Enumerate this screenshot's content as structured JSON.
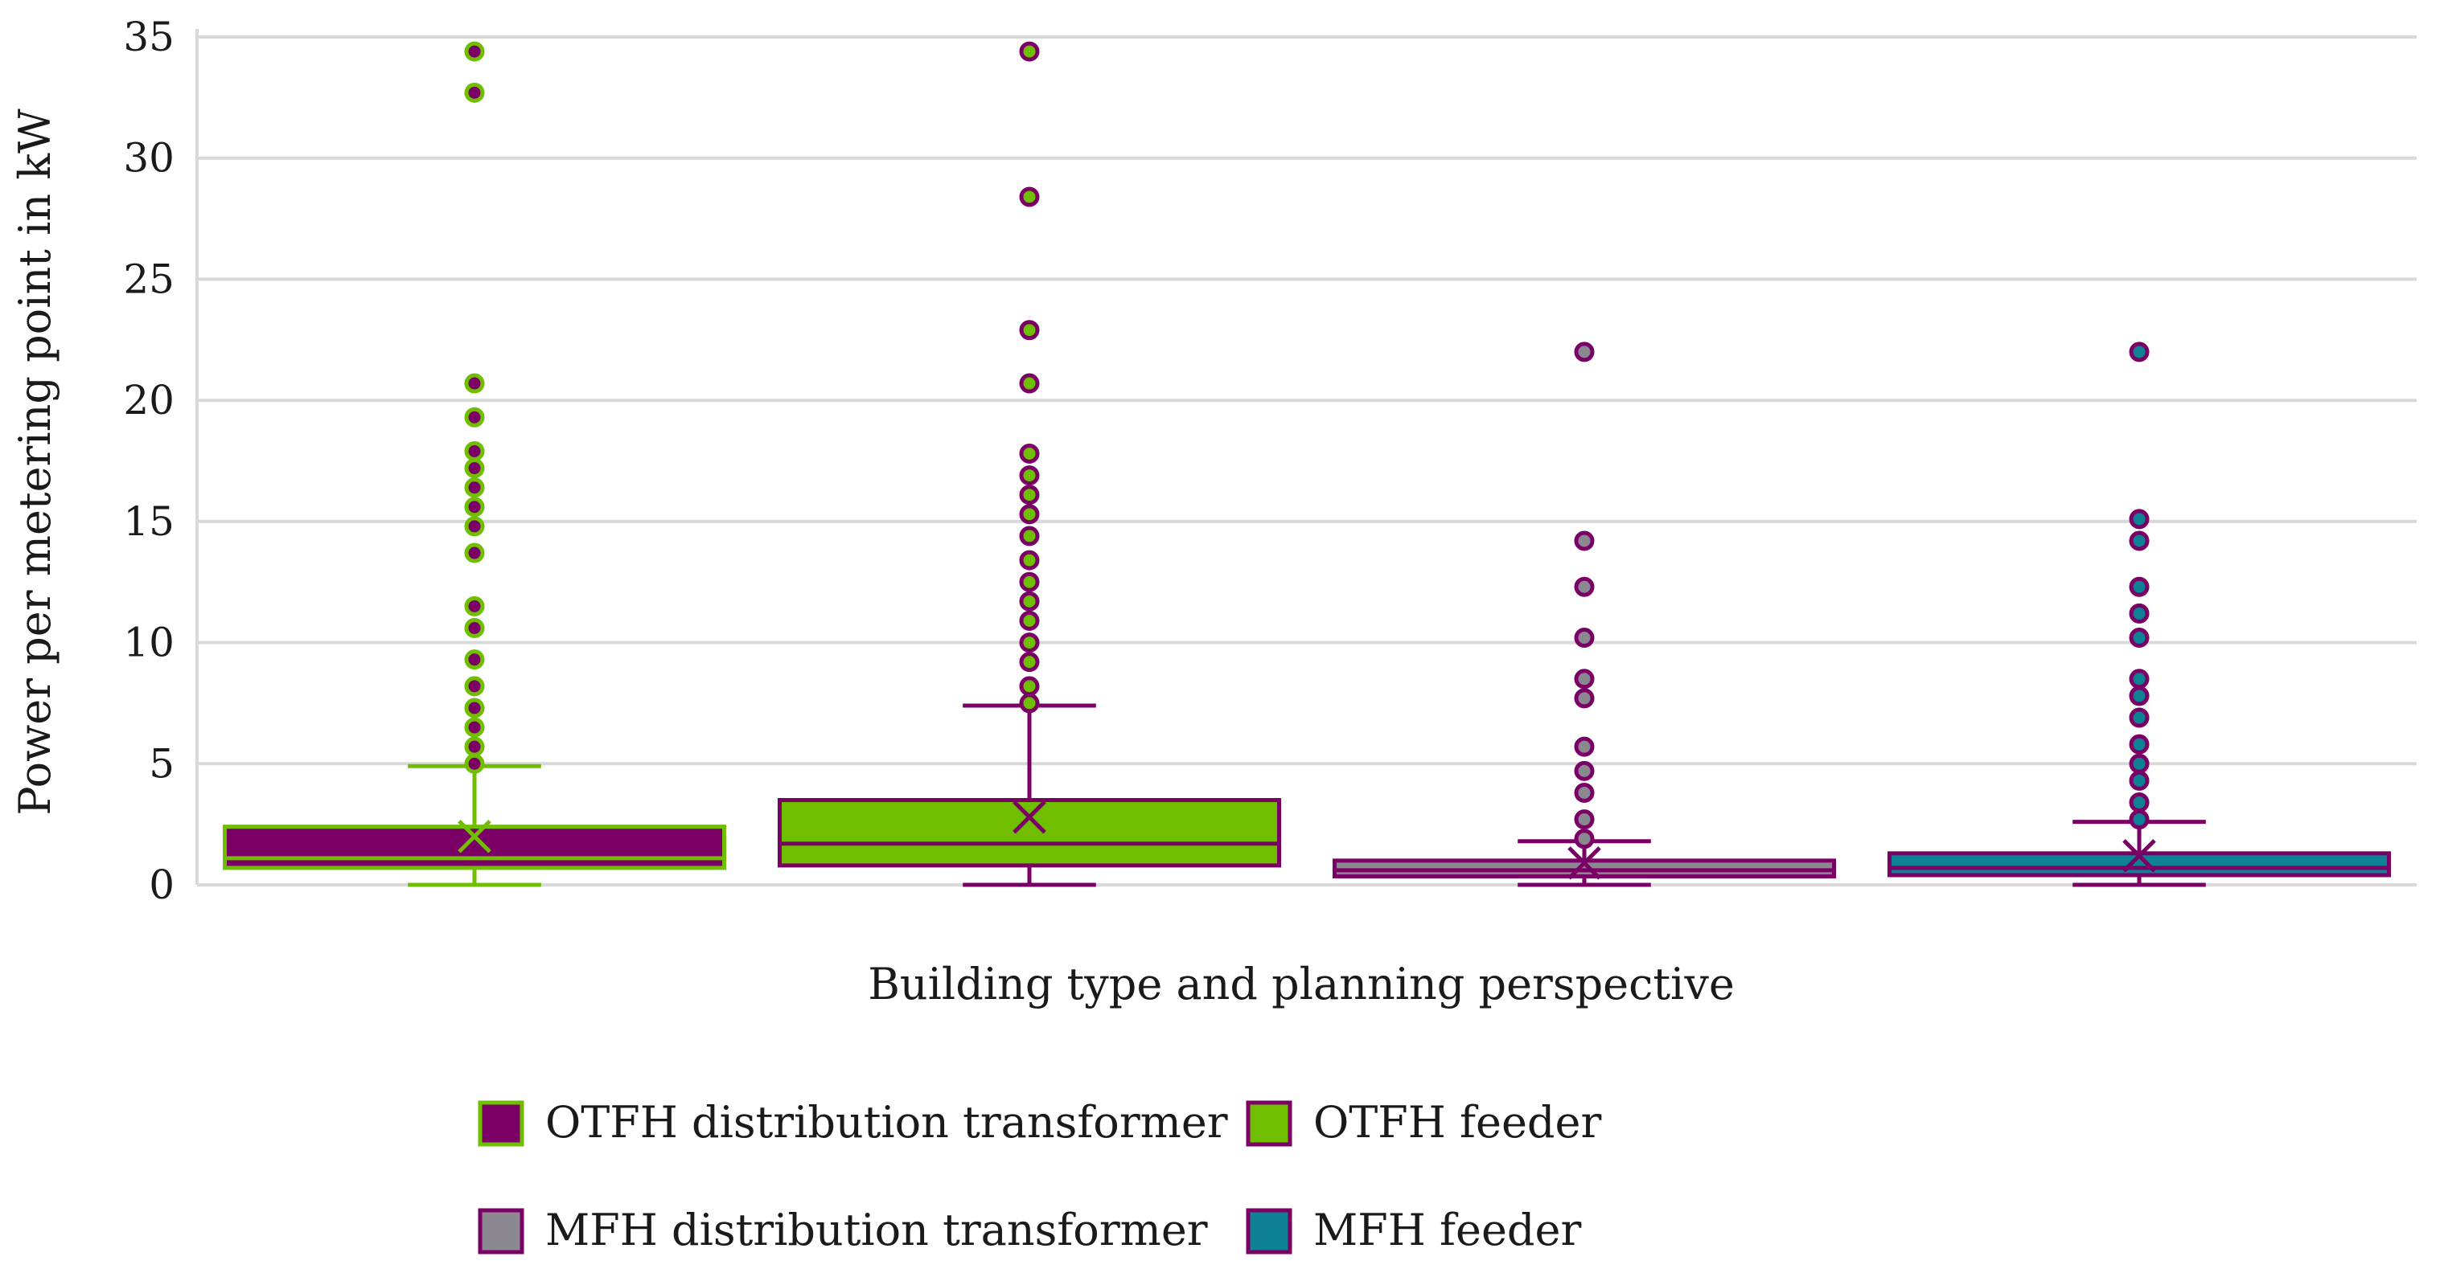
{
  "chart_data": {
    "type": "boxplot",
    "title": "",
    "xlabel": "Building type and planning perspective",
    "ylabel": "Power per metering point in kW",
    "ylim": [
      0,
      35
    ],
    "yticks": [
      0,
      5,
      10,
      15,
      20,
      25,
      30,
      35
    ],
    "grid": true,
    "legend_position": "bottom",
    "series": [
      {
        "name": "OTFH distribution transformer",
        "fill": "#7b0066",
        "edge": "#6fbf00",
        "whisker_low": 0,
        "q1": 0.7,
        "median": 1.1,
        "q3": 2.4,
        "whisker_high": 4.9,
        "mean": 2.0,
        "outliers": [
          5.0,
          5.7,
          6.5,
          7.3,
          8.2,
          9.3,
          10.6,
          11.5,
          13.7,
          14.8,
          15.6,
          16.4,
          17.2,
          17.9,
          19.3,
          20.7,
          32.7,
          34.4
        ]
      },
      {
        "name": "OTFH feeder",
        "fill": "#6fbf00",
        "edge": "#7b0066",
        "whisker_low": 0,
        "q1": 0.8,
        "median": 1.7,
        "q3": 3.5,
        "whisker_high": 7.4,
        "mean": 2.8,
        "outliers": [
          7.5,
          8.2,
          9.2,
          10.0,
          10.9,
          11.7,
          12.5,
          13.4,
          14.4,
          15.3,
          16.1,
          16.9,
          17.8,
          20.7,
          22.9,
          28.4,
          34.4
        ]
      },
      {
        "name": "MFH distribution transformer",
        "fill": "#8c8891",
        "edge": "#7b0066",
        "whisker_low": 0,
        "q1": 0.35,
        "median": 0.6,
        "q3": 1.0,
        "whisker_high": 1.8,
        "mean": 0.9,
        "outliers": [
          1.9,
          2.7,
          3.8,
          4.7,
          5.7,
          7.7,
          8.5,
          10.2,
          12.3,
          14.2,
          22.0
        ]
      },
      {
        "name": "MFH feeder",
        "fill": "#0e8194",
        "edge": "#7b0066",
        "whisker_low": 0,
        "q1": 0.4,
        "median": 0.7,
        "q3": 1.3,
        "whisker_high": 2.6,
        "mean": 1.2,
        "outliers": [
          2.7,
          3.4,
          4.3,
          5.0,
          5.8,
          6.9,
          7.8,
          8.5,
          10.2,
          11.2,
          12.3,
          14.2,
          15.1,
          22.0
        ]
      }
    ]
  }
}
